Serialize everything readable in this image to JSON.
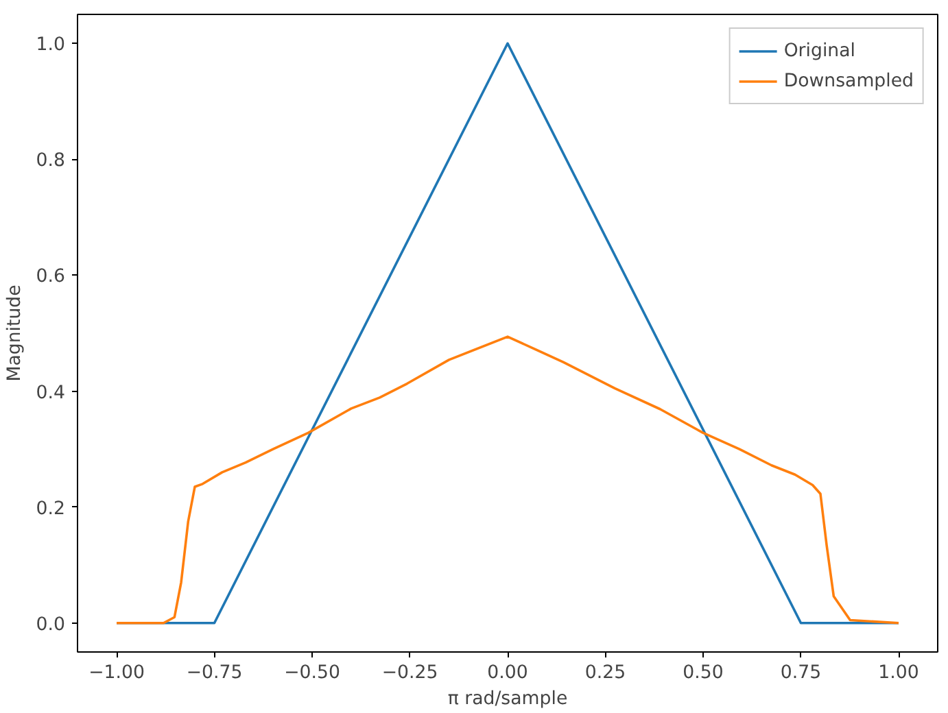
{
  "chart_data": {
    "type": "line",
    "xlabel": "π rad/sample",
    "ylabel": "Magnitude",
    "xlim": [
      -1.1,
      1.1
    ],
    "ylim": [
      -0.05,
      1.05
    ],
    "xticks": [
      {
        "value": -1,
        "label": "−1.00"
      },
      {
        "value": -0.75,
        "label": "−0.75"
      },
      {
        "value": -0.5,
        "label": "−0.50"
      },
      {
        "value": -0.25,
        "label": "−0.25"
      },
      {
        "value": 0,
        "label": "0.00"
      },
      {
        "value": 0.25,
        "label": "0.25"
      },
      {
        "value": 0.5,
        "label": "0.50"
      },
      {
        "value": 0.75,
        "label": "0.75"
      },
      {
        "value": 1,
        "label": "1.00"
      }
    ],
    "yticks": [
      {
        "value": 0,
        "label": "0.0"
      },
      {
        "value": 0.2,
        "label": "0.2"
      },
      {
        "value": 0.4,
        "label": "0.4"
      },
      {
        "value": 0.6,
        "label": "0.6"
      },
      {
        "value": 0.8,
        "label": "0.8"
      },
      {
        "value": 1,
        "label": "1.0"
      }
    ],
    "grid": false,
    "legend": "top right",
    "line_style": "solid",
    "series": [
      {
        "name": "Original",
        "color": "#1f77b4",
        "x": [
          -1,
          -0.75,
          0,
          0.75,
          1
        ],
        "values": [
          0,
          0,
          1,
          0,
          0
        ]
      },
      {
        "name": "Downsampled",
        "color": "#ff7f0e",
        "x": [
          -1,
          -0.88,
          -0.852,
          -0.835,
          -0.817,
          -0.8,
          -0.78,
          -0.73,
          -0.67,
          -0.6,
          -0.51,
          -0.4,
          -0.327,
          -0.257,
          -0.15,
          0,
          0.143,
          0.274,
          0.39,
          0.5,
          0.593,
          0.675,
          0.735,
          0.78,
          0.8,
          0.816,
          0.834,
          0.876,
          1
        ],
        "values": [
          0,
          0,
          0.01,
          0.07,
          0.175,
          0.235,
          0.24,
          0.26,
          0.277,
          0.3,
          0.328,
          0.37,
          0.389,
          0.413,
          0.454,
          0.494,
          0.45,
          0.405,
          0.369,
          0.328,
          0.3,
          0.272,
          0.256,
          0.238,
          0.223,
          0.134,
          0.046,
          0.005,
          0
        ]
      }
    ]
  }
}
